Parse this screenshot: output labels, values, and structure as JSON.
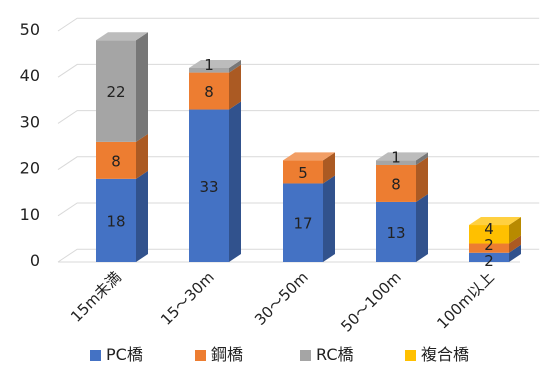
{
  "chart_data": {
    "type": "bar",
    "stacked": true,
    "three_d": true,
    "categories": [
      "15m未満",
      "15～30m",
      "30～50m",
      "50～100m",
      "100m以上"
    ],
    "series": [
      {
        "name": "PC橋",
        "color": "#4472c4",
        "values": [
          18,
          33,
          17,
          13,
          2
        ]
      },
      {
        "name": "鋼橋",
        "color": "#ed7d31",
        "values": [
          8,
          8,
          5,
          8,
          2
        ]
      },
      {
        "name": "RC橋",
        "color": "#a5a5a5",
        "values": [
          22,
          1,
          0,
          1,
          0
        ]
      },
      {
        "name": "複合橋",
        "color": "#ffc000",
        "values": [
          0,
          0,
          0,
          0,
          4
        ]
      }
    ],
    "yticks": [
      0,
      10,
      20,
      30,
      40,
      50
    ],
    "ylim": [
      0,
      50
    ],
    "grid": true,
    "legend": "bottom",
    "title": "",
    "xlabel": "",
    "ylabel": ""
  }
}
